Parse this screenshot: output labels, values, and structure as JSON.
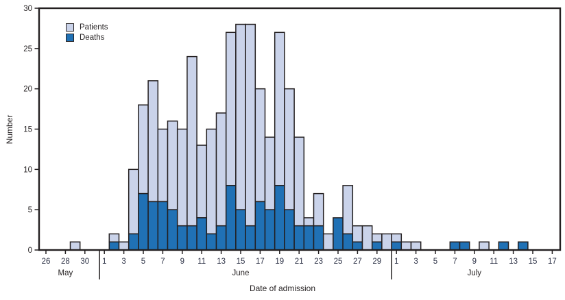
{
  "figure": {
    "ylabel": "Number",
    "xlabel": "Date of admission",
    "legend": [
      {
        "id": "patients",
        "label": "Patients"
      },
      {
        "id": "deaths",
        "label": "Deaths"
      }
    ]
  },
  "chart_data": {
    "type": "bar",
    "stacked": true,
    "title": "",
    "xlabel": "Date of admission",
    "ylabel": "Number",
    "ylim": [
      0,
      30
    ],
    "yticks": [
      0,
      5,
      10,
      15,
      20,
      25,
      30
    ],
    "grid": false,
    "legend_position": "top-left",
    "colors": {
      "patients": "#cad3ea",
      "deaths": "#2071b5",
      "outline": "#231f20",
      "frame": "#231f20",
      "date_label": "#2e3347",
      "text": "#231f20"
    },
    "months": [
      {
        "label": "May",
        "from": 26,
        "to": 31,
        "tick_labels": [
          26,
          28,
          30
        ]
      },
      {
        "label": "June",
        "from": 1,
        "to": 30,
        "tick_labels": [
          1,
          3,
          5,
          7,
          9,
          11,
          13,
          15,
          17,
          19,
          21,
          23,
          25,
          27,
          29
        ]
      },
      {
        "label": "July",
        "from": 1,
        "to": 17,
        "tick_labels": [
          1,
          3,
          5,
          7,
          9,
          11,
          13,
          15,
          17
        ]
      }
    ],
    "series_note": "patients = total bar height (stacked total); deaths = dark lower segment",
    "points": [
      {
        "month": "May",
        "day": 29,
        "patients": 1,
        "deaths": 0
      },
      {
        "month": "June",
        "day": 2,
        "patients": 2,
        "deaths": 1
      },
      {
        "month": "June",
        "day": 3,
        "patients": 1,
        "deaths": 0
      },
      {
        "month": "June",
        "day": 4,
        "patients": 10,
        "deaths": 2
      },
      {
        "month": "June",
        "day": 5,
        "patients": 18,
        "deaths": 7
      },
      {
        "month": "June",
        "day": 6,
        "patients": 21,
        "deaths": 6
      },
      {
        "month": "June",
        "day": 7,
        "patients": 15,
        "deaths": 6
      },
      {
        "month": "June",
        "day": 8,
        "patients": 16,
        "deaths": 5
      },
      {
        "month": "June",
        "day": 9,
        "patients": 15,
        "deaths": 3
      },
      {
        "month": "June",
        "day": 10,
        "patients": 24,
        "deaths": 3
      },
      {
        "month": "June",
        "day": 11,
        "patients": 13,
        "deaths": 4
      },
      {
        "month": "June",
        "day": 12,
        "patients": 15,
        "deaths": 2
      },
      {
        "month": "June",
        "day": 13,
        "patients": 17,
        "deaths": 3
      },
      {
        "month": "June",
        "day": 14,
        "patients": 27,
        "deaths": 8
      },
      {
        "month": "June",
        "day": 15,
        "patients": 28,
        "deaths": 5
      },
      {
        "month": "June",
        "day": 16,
        "patients": 28,
        "deaths": 3
      },
      {
        "month": "June",
        "day": 17,
        "patients": 20,
        "deaths": 6
      },
      {
        "month": "June",
        "day": 18,
        "patients": 14,
        "deaths": 5
      },
      {
        "month": "June",
        "day": 19,
        "patients": 27,
        "deaths": 8
      },
      {
        "month": "June",
        "day": 20,
        "patients": 20,
        "deaths": 5
      },
      {
        "month": "June",
        "day": 21,
        "patients": 14,
        "deaths": 3
      },
      {
        "month": "June",
        "day": 22,
        "patients": 4,
        "deaths": 3
      },
      {
        "month": "June",
        "day": 23,
        "patients": 7,
        "deaths": 3
      },
      {
        "month": "June",
        "day": 24,
        "patients": 2,
        "deaths": 0
      },
      {
        "month": "June",
        "day": 25,
        "patients": 4,
        "deaths": 4
      },
      {
        "month": "June",
        "day": 26,
        "patients": 8,
        "deaths": 2
      },
      {
        "month": "June",
        "day": 27,
        "patients": 3,
        "deaths": 1
      },
      {
        "month": "June",
        "day": 28,
        "patients": 3,
        "deaths": 0
      },
      {
        "month": "June",
        "day": 29,
        "patients": 2,
        "deaths": 1
      },
      {
        "month": "June",
        "day": 30,
        "patients": 2,
        "deaths": 0
      },
      {
        "month": "July",
        "day": 1,
        "patients": 2,
        "deaths": 1
      },
      {
        "month": "July",
        "day": 2,
        "patients": 1,
        "deaths": 0
      },
      {
        "month": "July",
        "day": 3,
        "patients": 1,
        "deaths": 0
      },
      {
        "month": "July",
        "day": 7,
        "patients": 1,
        "deaths": 1
      },
      {
        "month": "July",
        "day": 8,
        "patients": 1,
        "deaths": 1
      },
      {
        "month": "July",
        "day": 10,
        "patients": 1,
        "deaths": 0
      },
      {
        "month": "July",
        "day": 12,
        "patients": 1,
        "deaths": 1
      },
      {
        "month": "July",
        "day": 14,
        "patients": 1,
        "deaths": 1
      }
    ]
  }
}
